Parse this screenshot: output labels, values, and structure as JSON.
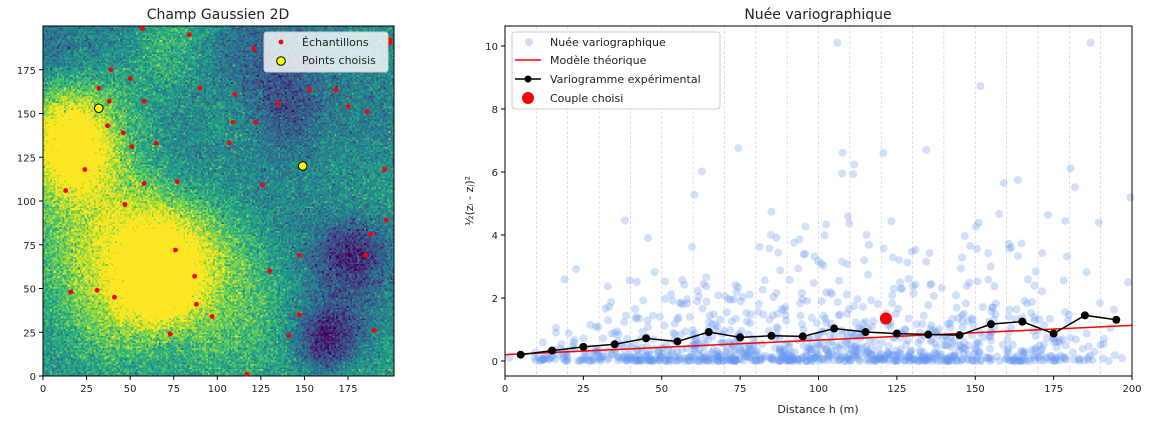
{
  "chart_data": [
    {
      "type": "heatmap",
      "title": "Champ Gaussien 2D",
      "colormap": "viridis",
      "xlim": [
        0,
        200
      ],
      "ylim": [
        0,
        200
      ],
      "xticks": [
        "0",
        "25",
        "50",
        "75",
        "100",
        "125",
        "150",
        "175"
      ],
      "yticks": [
        "0",
        "25",
        "50",
        "75",
        "100",
        "125",
        "150",
        "175"
      ],
      "legend_position": "top-right",
      "legend": {
        "samples": "Échantillons",
        "chosen": "Points choisis"
      },
      "colors": {
        "samples": "#ff0000",
        "chosen": "#ffff00"
      },
      "samples": [
        [
          57,
          198.5
        ],
        [
          84,
          195
        ],
        [
          121,
          187
        ],
        [
          199,
          192
        ],
        [
          199,
          190.5
        ],
        [
          39,
          175
        ],
        [
          50,
          170
        ],
        [
          32,
          164.5
        ],
        [
          90,
          164.5
        ],
        [
          110,
          161
        ],
        [
          38,
          157
        ],
        [
          58,
          157
        ],
        [
          153,
          163.6
        ],
        [
          168,
          163.6
        ],
        [
          135,
          156
        ],
        [
          175,
          154
        ],
        [
          186,
          151
        ],
        [
          37,
          143
        ],
        [
          109,
          145
        ],
        [
          122,
          145
        ],
        [
          46,
          139
        ],
        [
          51,
          131
        ],
        [
          65,
          133
        ],
        [
          107,
          133
        ],
        [
          24,
          118
        ],
        [
          196,
          118
        ],
        [
          58,
          110
        ],
        [
          77,
          111
        ],
        [
          126,
          109
        ],
        [
          13,
          106
        ],
        [
          47,
          98
        ],
        [
          197,
          89
        ],
        [
          188,
          81
        ],
        [
          76,
          72
        ],
        [
          147,
          69
        ],
        [
          185,
          69
        ],
        [
          130,
          60
        ],
        [
          87,
          57
        ],
        [
          16,
          48
        ],
        [
          31,
          49
        ],
        [
          41,
          45
        ],
        [
          88,
          41
        ],
        [
          97,
          34
        ],
        [
          147,
          35
        ],
        [
          73,
          24
        ],
        [
          141,
          23
        ],
        [
          190,
          26
        ],
        [
          117,
          1
        ]
      ],
      "chosen_points": [
        [
          32,
          153
        ],
        [
          149,
          120
        ]
      ]
    },
    {
      "type": "scatter",
      "title": "Nuée variographique",
      "xlabel": "Distance h (m)",
      "ylabel": "½(zᵢ - zⱼ)²",
      "xlim": [
        0,
        200
      ],
      "ylim": [
        -0.5,
        10.6
      ],
      "xticks": [
        "0",
        "25",
        "50",
        "75",
        "100",
        "125",
        "150",
        "175",
        "200"
      ],
      "yticks": [
        "0",
        "2",
        "4",
        "6",
        "8",
        "10"
      ],
      "grid": "vertical dashed every 10",
      "legend_position": "top-left",
      "series": [
        {
          "name": "Nuée variographique",
          "color": "#6495ed",
          "kind": "scatter"
        },
        {
          "name": "Modèle théorique",
          "color": "#ff0000",
          "kind": "line",
          "x": [
            0,
            200
          ],
          "y": [
            0.2,
            1.13
          ]
        },
        {
          "name": "Variogramme expérimental",
          "color": "#000000",
          "kind": "line-markers",
          "x": [
            5,
            15,
            25,
            35,
            45,
            55,
            65,
            75,
            85,
            95,
            105,
            115,
            125,
            135,
            145,
            155,
            165,
            175,
            185,
            195
          ],
          "y": [
            0.2,
            0.33,
            0.45,
            0.53,
            0.72,
            0.62,
            0.92,
            0.75,
            0.8,
            0.78,
            1.03,
            0.92,
            0.87,
            0.84,
            0.82,
            1.17,
            1.25,
            0.87,
            1.45,
            1.31
          ]
        },
        {
          "name": "Couple choisi",
          "color": "#ff0000",
          "kind": "point",
          "x": [
            121.5
          ],
          "y": [
            1.35
          ]
        }
      ]
    }
  ]
}
